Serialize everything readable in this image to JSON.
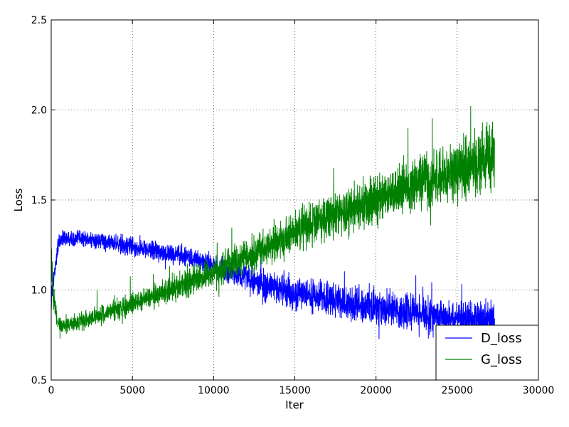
{
  "chart_data": {
    "type": "line",
    "title": "",
    "xlabel": "Iter",
    "ylabel": "Loss",
    "xlim": [
      0,
      30000
    ],
    "ylim": [
      0.5,
      2.5
    ],
    "xticks": [
      0,
      5000,
      10000,
      15000,
      20000,
      25000,
      30000
    ],
    "xtick_labels": [
      "0",
      "5000",
      "10000",
      "15000",
      "20000",
      "25000",
      "30000"
    ],
    "yticks": [
      0.5,
      1.0,
      1.5,
      2.0,
      2.5
    ],
    "ytick_labels": [
      "0.5",
      "1.0",
      "1.5",
      "2.0",
      "2.5"
    ],
    "grid": true,
    "grid_style": "dotted",
    "legend_position": "bottom-right",
    "x_max_data": 27300,
    "series": [
      {
        "name": "D_loss",
        "color": "#0000ff",
        "trend_x": [
          0,
          150,
          400,
          700,
          1500,
          3000,
          5000,
          7000,
          9000,
          11000,
          13000,
          15000,
          17000,
          19000,
          21000,
          23000,
          25000,
          27300
        ],
        "trend_y": [
          0.95,
          1.05,
          1.24,
          1.29,
          1.29,
          1.27,
          1.24,
          1.21,
          1.17,
          1.1,
          1.03,
          0.99,
          0.95,
          0.92,
          0.89,
          0.86,
          0.84,
          0.83
        ],
        "noise_amplitude": [
          0.05,
          0.05,
          0.04,
          0.04,
          0.04,
          0.04,
          0.05,
          0.05,
          0.05,
          0.06,
          0.07,
          0.08,
          0.08,
          0.09,
          0.09,
          0.09,
          0.09,
          0.09
        ]
      },
      {
        "name": "G_loss",
        "color": "#008000",
        "trend_x": [
          0,
          150,
          400,
          700,
          1500,
          3000,
          5000,
          7000,
          9000,
          11000,
          13000,
          15000,
          17000,
          19000,
          21000,
          23000,
          25000,
          27300
        ],
        "trend_y": [
          1.15,
          0.95,
          0.82,
          0.8,
          0.82,
          0.86,
          0.92,
          0.99,
          1.06,
          1.14,
          1.22,
          1.32,
          1.4,
          1.47,
          1.54,
          1.6,
          1.67,
          1.74
        ],
        "noise_amplitude": [
          0.1,
          0.06,
          0.04,
          0.04,
          0.04,
          0.05,
          0.05,
          0.06,
          0.07,
          0.08,
          0.09,
          0.1,
          0.11,
          0.12,
          0.13,
          0.14,
          0.15,
          0.16
        ]
      }
    ]
  }
}
